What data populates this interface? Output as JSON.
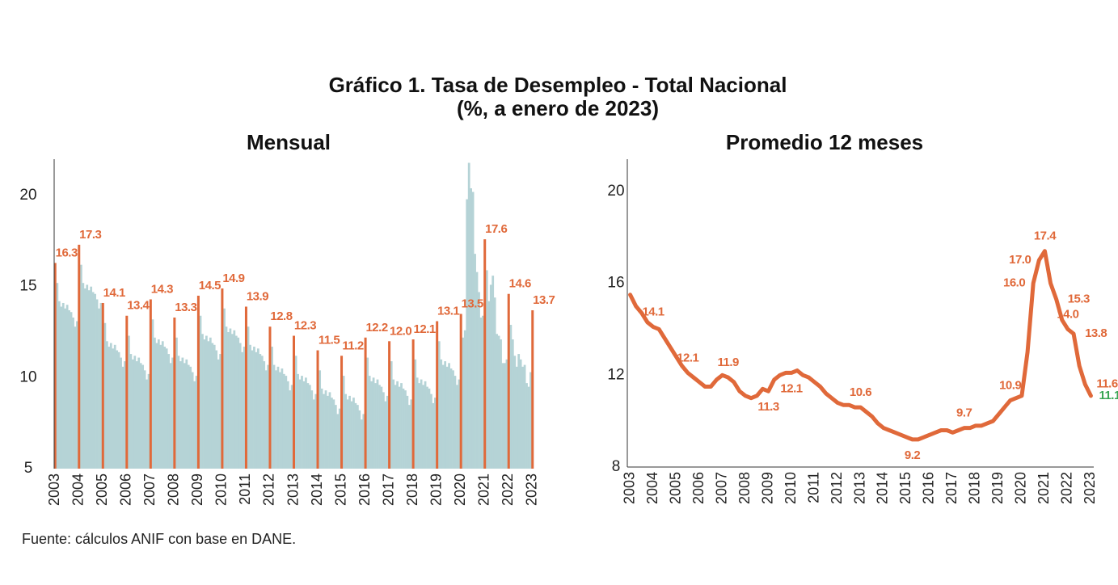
{
  "header": {
    "title": "Gráfico 1. Tasa de Desempleo - Total Nacional",
    "subtitle": "(%, a enero de 2023)"
  },
  "source": "Fuente: cálculos ANIF con base en DANE.",
  "chart_data": [
    {
      "type": "bar",
      "title": "Mensual",
      "color": "#b5d3d6",
      "highlight_color": "#e0693a",
      "ylim": [
        5,
        22
      ],
      "yticks": [
        5,
        10,
        15,
        20
      ],
      "categories": [
        "2003",
        null,
        null,
        null,
        null,
        null,
        null,
        null,
        null,
        null,
        null,
        null,
        "2004",
        null,
        null,
        null,
        null,
        null,
        null,
        null,
        null,
        null,
        null,
        null,
        "2005",
        null,
        null,
        null,
        null,
        null,
        null,
        null,
        null,
        null,
        null,
        null,
        "2006",
        null,
        null,
        null,
        null,
        null,
        null,
        null,
        null,
        null,
        null,
        null,
        "2007",
        null,
        null,
        null,
        null,
        null,
        null,
        null,
        null,
        null,
        null,
        null,
        "2008",
        null,
        null,
        null,
        null,
        null,
        null,
        null,
        null,
        null,
        null,
        null,
        "2009",
        null,
        null,
        null,
        null,
        null,
        null,
        null,
        null,
        null,
        null,
        null,
        "2010",
        null,
        null,
        null,
        null,
        null,
        null,
        null,
        null,
        null,
        null,
        null,
        "2011",
        null,
        null,
        null,
        null,
        null,
        null,
        null,
        null,
        null,
        null,
        null,
        "2012",
        null,
        null,
        null,
        null,
        null,
        null,
        null,
        null,
        null,
        null,
        null,
        "2013",
        null,
        null,
        null,
        null,
        null,
        null,
        null,
        null,
        null,
        null,
        null,
        "2014",
        null,
        null,
        null,
        null,
        null,
        null,
        null,
        null,
        null,
        null,
        null,
        "2015",
        null,
        null,
        null,
        null,
        null,
        null,
        null,
        null,
        null,
        null,
        null,
        "2016",
        null,
        null,
        null,
        null,
        null,
        null,
        null,
        null,
        null,
        null,
        null,
        "2017",
        null,
        null,
        null,
        null,
        null,
        null,
        null,
        null,
        null,
        null,
        null,
        "2018",
        null,
        null,
        null,
        null,
        null,
        null,
        null,
        null,
        null,
        null,
        null,
        "2019",
        null,
        null,
        null,
        null,
        null,
        null,
        null,
        null,
        null,
        null,
        null,
        "2020",
        null,
        null,
        null,
        null,
        null,
        null,
        null,
        null,
        null,
        null,
        null,
        "2021",
        null,
        null,
        null,
        null,
        null,
        null,
        null,
        null,
        null,
        null,
        null,
        "2022",
        null,
        null,
        null,
        null,
        null,
        null,
        null,
        null,
        null,
        null,
        null,
        "2023"
      ],
      "values": [
        16.3,
        15.2,
        14.2,
        13.9,
        14.1,
        13.8,
        14.0,
        13.7,
        13.6,
        13.3,
        12.8,
        13.1,
        17.3,
        16.2,
        15.2,
        14.9,
        15.1,
        14.8,
        15.0,
        14.7,
        14.6,
        14.3,
        13.8,
        14.1,
        14.1,
        13.0,
        12.0,
        11.7,
        11.9,
        11.6,
        11.8,
        11.5,
        11.4,
        11.1,
        10.6,
        10.9,
        13.4,
        12.3,
        11.3,
        11.0,
        11.2,
        10.9,
        11.1,
        10.8,
        10.7,
        10.4,
        9.9,
        10.2,
        14.3,
        13.2,
        12.2,
        11.9,
        12.1,
        11.8,
        12.0,
        11.7,
        11.6,
        11.3,
        10.8,
        11.1,
        13.3,
        12.2,
        11.2,
        10.9,
        11.1,
        10.8,
        11.0,
        10.7,
        10.6,
        10.3,
        9.8,
        10.1,
        14.5,
        13.4,
        12.4,
        12.1,
        12.3,
        12.0,
        12.2,
        11.9,
        11.8,
        11.5,
        11.0,
        11.3,
        14.9,
        13.8,
        12.8,
        12.5,
        12.7,
        12.4,
        12.6,
        12.3,
        12.2,
        11.9,
        11.4,
        11.7,
        13.9,
        12.8,
        11.8,
        11.5,
        11.7,
        11.4,
        11.6,
        11.3,
        11.2,
        10.9,
        10.4,
        10.7,
        12.8,
        11.7,
        10.7,
        10.4,
        10.6,
        10.3,
        10.5,
        10.2,
        10.1,
        9.8,
        9.3,
        9.6,
        12.3,
        11.2,
        10.2,
        9.9,
        10.1,
        9.8,
        10.0,
        9.7,
        9.6,
        9.3,
        8.8,
        9.1,
        11.5,
        10.4,
        9.4,
        9.1,
        9.3,
        9.0,
        9.2,
        8.9,
        8.8,
        8.5,
        8.0,
        8.3,
        11.2,
        10.1,
        9.1,
        8.8,
        9.0,
        8.7,
        8.9,
        8.6,
        8.5,
        8.2,
        7.7,
        8.0,
        12.2,
        11.1,
        10.1,
        9.8,
        10.0,
        9.7,
        9.9,
        9.6,
        9.5,
        9.2,
        8.7,
        9.0,
        12.0,
        10.9,
        9.9,
        9.6,
        9.8,
        9.5,
        9.7,
        9.4,
        9.3,
        9.0,
        8.5,
        8.8,
        12.1,
        11.0,
        10.0,
        9.7,
        9.9,
        9.6,
        9.8,
        9.5,
        9.4,
        9.1,
        8.6,
        8.9,
        13.1,
        12.0,
        11.0,
        10.7,
        10.9,
        10.6,
        10.8,
        10.5,
        10.4,
        10.1,
        9.6,
        9.9,
        13.5,
        12.2,
        12.6,
        19.8,
        21.8,
        20.4,
        20.2,
        16.8,
        15.8,
        14.7,
        13.3,
        13.4,
        17.6,
        15.9,
        14.2,
        15.1,
        15.6,
        14.4,
        12.4,
        12.3,
        12.1,
        10.8,
        10.8,
        11.0,
        14.6,
        12.9,
        12.1,
        11.2,
        10.6,
        11.3,
        11.0,
        10.6,
        10.7,
        9.7,
        9.5,
        10.3,
        13.7
      ],
      "value_labels": [
        "16.3",
        null,
        null,
        null,
        null,
        null,
        null,
        null,
        null,
        null,
        null,
        null,
        "17.3",
        null,
        null,
        null,
        null,
        null,
        null,
        null,
        null,
        null,
        null,
        null,
        "14.1",
        null,
        null,
        null,
        null,
        null,
        null,
        null,
        null,
        null,
        null,
        null,
        "13.4",
        null,
        null,
        null,
        null,
        null,
        null,
        null,
        null,
        null,
        null,
        null,
        "14.3",
        null,
        null,
        null,
        null,
        null,
        null,
        null,
        null,
        null,
        null,
        null,
        "13.3",
        null,
        null,
        null,
        null,
        null,
        null,
        null,
        null,
        null,
        null,
        null,
        "14.5",
        null,
        null,
        null,
        null,
        null,
        null,
        null,
        null,
        null,
        null,
        null,
        "14.9",
        null,
        null,
        null,
        null,
        null,
        null,
        null,
        null,
        null,
        null,
        null,
        "13.9",
        null,
        null,
        null,
        null,
        null,
        null,
        null,
        null,
        null,
        null,
        null,
        "12.8",
        null,
        null,
        null,
        null,
        null,
        null,
        null,
        null,
        null,
        null,
        null,
        "12.3",
        null,
        null,
        null,
        null,
        null,
        null,
        null,
        null,
        null,
        null,
        null,
        "11.5",
        null,
        null,
        null,
        null,
        null,
        null,
        null,
        null,
        null,
        null,
        null,
        "11.2",
        null,
        null,
        null,
        null,
        null,
        null,
        null,
        null,
        null,
        null,
        null,
        "12.2",
        null,
        null,
        null,
        null,
        null,
        null,
        null,
        null,
        null,
        null,
        null,
        "12.0",
        null,
        null,
        null,
        null,
        null,
        null,
        null,
        null,
        null,
        null,
        null,
        "12.1",
        null,
        null,
        null,
        null,
        null,
        null,
        null,
        null,
        null,
        null,
        null,
        "13.1",
        null,
        null,
        null,
        null,
        null,
        null,
        null,
        null,
        null,
        null,
        null,
        "13.5",
        null,
        null,
        null,
        null,
        null,
        null,
        null,
        null,
        null,
        null,
        null,
        "17.6",
        null,
        null,
        null,
        null,
        null,
        null,
        null,
        null,
        null,
        null,
        null,
        "14.6",
        null,
        null,
        null,
        null,
        null,
        null,
        null,
        null,
        null,
        null,
        null,
        "13.7"
      ]
    },
    {
      "type": "line",
      "title": "Promedio 12 meses",
      "color": "#e0693a",
      "last_label_color": "#3aa655",
      "ylim": [
        8,
        21.4
      ],
      "yticks": [
        8,
        12,
        16,
        20
      ],
      "categories": [
        "2003",
        null,
        null,
        null,
        "2004",
        null,
        null,
        null,
        "2005",
        null,
        null,
        null,
        "2006",
        null,
        null,
        null,
        "2007",
        null,
        null,
        null,
        "2008",
        null,
        null,
        null,
        "2009",
        null,
        null,
        null,
        "2010",
        null,
        null,
        null,
        "2011",
        null,
        null,
        null,
        "2012",
        null,
        null,
        null,
        "2013",
        null,
        null,
        null,
        "2014",
        null,
        null,
        null,
        "2015",
        null,
        null,
        null,
        "2016",
        null,
        null,
        null,
        "2017",
        null,
        null,
        null,
        "2018",
        null,
        null,
        null,
        "2019",
        null,
        null,
        null,
        "2020",
        null,
        null,
        null,
        "2021",
        null,
        null,
        null,
        "2022",
        null,
        null,
        null,
        "2023"
      ],
      "values": [
        15.5,
        15.0,
        14.7,
        14.3,
        14.1,
        14.0,
        13.6,
        13.2,
        12.8,
        12.4,
        12.1,
        11.9,
        11.7,
        11.5,
        11.5,
        11.8,
        12.0,
        11.9,
        11.7,
        11.3,
        11.1,
        11.0,
        11.1,
        11.4,
        11.3,
        11.8,
        12.0,
        12.1,
        12.1,
        12.2,
        12.0,
        11.9,
        11.7,
        11.5,
        11.2,
        11.0,
        10.8,
        10.7,
        10.7,
        10.6,
        10.6,
        10.4,
        10.2,
        9.9,
        9.7,
        9.6,
        9.5,
        9.4,
        9.3,
        9.2,
        9.2,
        9.3,
        9.4,
        9.5,
        9.6,
        9.6,
        9.5,
        9.6,
        9.7,
        9.7,
        9.8,
        9.8,
        9.9,
        10.0,
        10.3,
        10.6,
        10.9,
        11.0,
        11.1,
        13.0,
        16.0,
        17.0,
        17.4,
        16.0,
        15.3,
        14.4,
        14.0,
        13.8,
        12.4,
        11.6,
        11.1
      ],
      "value_labels": [
        null,
        null,
        null,
        null,
        "14.1",
        null,
        null,
        null,
        null,
        null,
        "12.1",
        null,
        null,
        null,
        null,
        null,
        null,
        "11.9",
        null,
        null,
        null,
        null,
        null,
        null,
        "11.3",
        null,
        null,
        null,
        "12.1",
        null,
        null,
        null,
        null,
        null,
        null,
        null,
        null,
        null,
        null,
        null,
        "10.6",
        null,
        null,
        null,
        null,
        null,
        null,
        null,
        null,
        "9.2",
        null,
        null,
        null,
        null,
        null,
        null,
        null,
        null,
        "9.7",
        null,
        null,
        null,
        null,
        null,
        null,
        null,
        "10.9",
        null,
        null,
        null,
        "16.0",
        "17.0",
        "17.4",
        null,
        "15.3",
        null,
        "14.0",
        "13.8",
        null,
        "11.6",
        "11.1"
      ]
    }
  ]
}
